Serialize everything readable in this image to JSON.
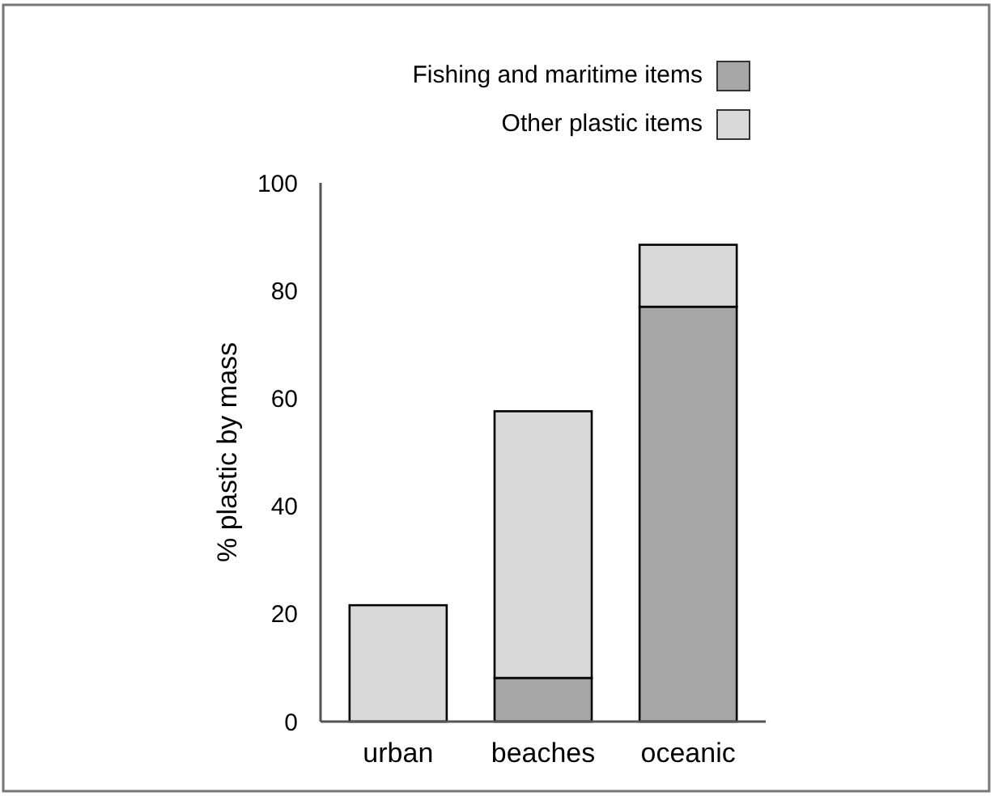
{
  "chart_data": {
    "type": "bar",
    "stacked": true,
    "ylabel": "% plastic by mass",
    "categories": [
      "urban",
      "beaches",
      "oceanic"
    ],
    "series": [
      {
        "name": "Fishing and maritime items",
        "color": "#a6a6a6",
        "values": [
          0,
          8.1,
          77
        ]
      },
      {
        "name": "Other plastic items",
        "color": "#d9d9d9",
        "values": [
          21.6,
          49.5,
          11.5
        ]
      }
    ],
    "ylim": [
      0,
      100
    ],
    "yticks": [
      0,
      20,
      40,
      60,
      80,
      100
    ],
    "grid": false,
    "legend": "top right"
  }
}
